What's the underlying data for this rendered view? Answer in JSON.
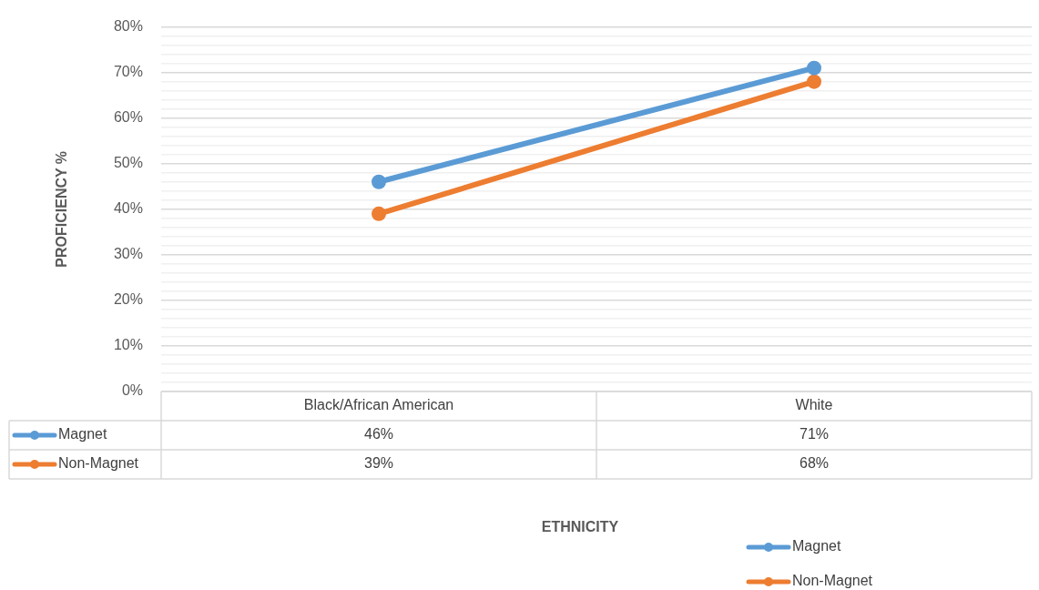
{
  "chart_data": {
    "type": "line",
    "annotations": [
      "ETHNICITY"
    ],
    "ylabel": "PROFICIENCY %",
    "categories": [
      "Black/African American",
      "White"
    ],
    "series": [
      {
        "name": "Magnet",
        "color": "#5b9bd5",
        "values": [
          46,
          71
        ],
        "value_labels": [
          "46%",
          "71%"
        ]
      },
      {
        "name": "Non-Magnet",
        "color": "#ed7d31",
        "values": [
          39,
          68
        ],
        "value_labels": [
          "39%",
          "68%"
        ]
      }
    ],
    "ylim": [
      0,
      80
    ],
    "yticks": [
      {
        "value": 0,
        "label": "0%"
      },
      {
        "value": 2,
        "label": null
      },
      {
        "value": 4,
        "label": null
      },
      {
        "value": 6,
        "label": null
      },
      {
        "value": 8,
        "label": null
      },
      {
        "value": 10,
        "label": "10%"
      },
      {
        "value": 12,
        "label": null
      },
      {
        "value": 14,
        "label": null
      },
      {
        "value": 16,
        "label": null
      },
      {
        "value": 18,
        "label": null
      },
      {
        "value": 20,
        "label": "20%"
      },
      {
        "value": 22,
        "label": null
      },
      {
        "value": 24,
        "label": null
      },
      {
        "value": 26,
        "label": null
      },
      {
        "value": 28,
        "label": null
      },
      {
        "value": 30,
        "label": "30%"
      },
      {
        "value": 32,
        "label": null
      },
      {
        "value": 34,
        "label": null
      },
      {
        "value": 36,
        "label": null
      },
      {
        "value": 38,
        "label": null
      },
      {
        "value": 40,
        "label": "40%"
      },
      {
        "value": 42,
        "label": null
      },
      {
        "value": 44,
        "label": null
      },
      {
        "value": 46,
        "label": null
      },
      {
        "value": 48,
        "label": null
      },
      {
        "value": 50,
        "label": "50%"
      },
      {
        "value": 52,
        "label": null
      },
      {
        "value": 54,
        "label": null
      },
      {
        "value": 56,
        "label": null
      },
      {
        "value": 58,
        "label": null
      },
      {
        "value": 60,
        "label": "60%"
      },
      {
        "value": 62,
        "label": null
      },
      {
        "value": 64,
        "label": null
      },
      {
        "value": 66,
        "label": null
      },
      {
        "value": 68,
        "label": null
      },
      {
        "value": 70,
        "label": "70%"
      },
      {
        "value": 72,
        "label": null
      },
      {
        "value": 74,
        "label": null
      },
      {
        "value": 76,
        "label": null
      },
      {
        "value": 78,
        "label": null
      },
      {
        "value": 80,
        "label": "80%"
      }
    ],
    "grid": "y",
    "legend": "bottom",
    "marker": "circle",
    "line_style": "solid"
  }
}
